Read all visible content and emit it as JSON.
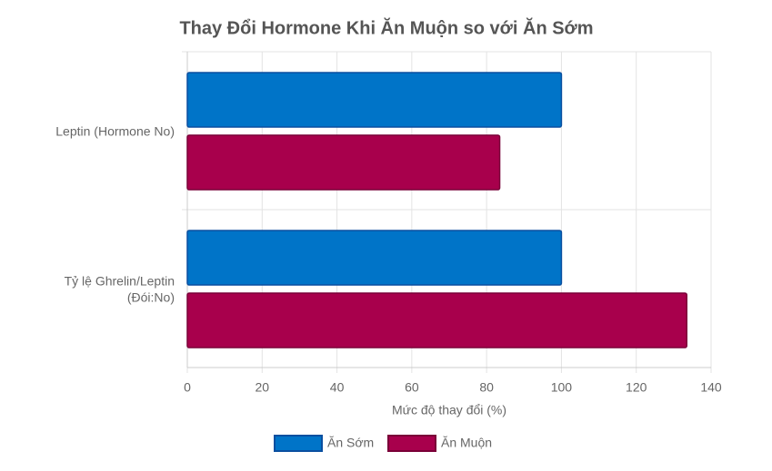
{
  "chart_data": {
    "type": "hbar",
    "title": "Thay Đổi Hormone Khi Ăn Muộn so với Ăn Sớm",
    "categories": [
      [
        "Leptin (Hormone No)"
      ],
      [
        "Tỷ lệ Ghrelin/Leptin",
        "(Đói:No)"
      ]
    ],
    "series": [
      {
        "name": "Ăn Sớm",
        "color": "#0074c8",
        "values": [
          100,
          100
        ]
      },
      {
        "name": "Ăn Muộn",
        "color": "#a8004c",
        "values": [
          83.5,
          133.5
        ]
      }
    ],
    "x_label": "Mức độ thay đổi (%)",
    "xlim": [
      0,
      140
    ],
    "xticks": [
      0,
      20,
      40,
      60,
      80,
      100,
      120,
      140
    ],
    "grid": true,
    "legend": "bottom"
  }
}
